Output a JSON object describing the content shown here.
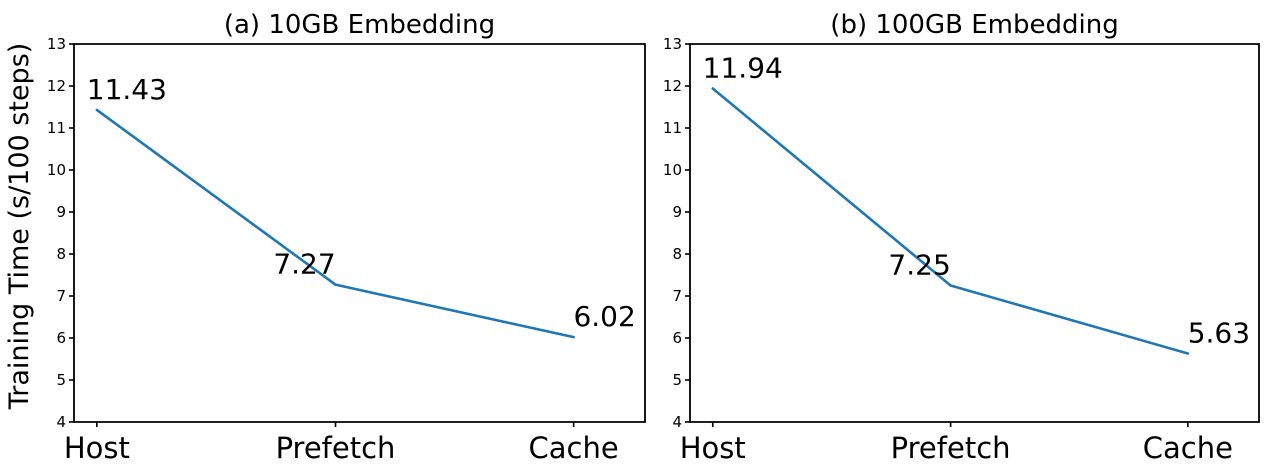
{
  "figure": {
    "background": "#ffffff",
    "text_color": "#000000",
    "line_color": "#1f77b4",
    "shared_ylabel": "Training Time (s/100 steps)"
  },
  "chart_data": [
    {
      "type": "line",
      "title": "(a) 10GB Embedding",
      "categories": [
        "Host",
        "Prefetch",
        "Cache"
      ],
      "values": [
        11.43,
        7.27,
        6.02
      ],
      "point_labels": [
        "11.43",
        "7.27",
        "6.02"
      ],
      "ylabel": "Training Time (s/100 steps)",
      "xlabel": "",
      "ylim": [
        4,
        13
      ],
      "yticks": [
        4,
        5,
        6,
        7,
        8,
        9,
        10,
        11,
        12,
        13
      ],
      "grid": false,
      "legend": "none",
      "line_color": "#1f77b4"
    },
    {
      "type": "line",
      "title": "(b) 100GB Embedding",
      "categories": [
        "Host",
        "Prefetch",
        "Cache"
      ],
      "values": [
        11.94,
        7.25,
        5.63
      ],
      "point_labels": [
        "11.94",
        "7.25",
        "5.63"
      ],
      "ylabel": "",
      "xlabel": "",
      "ylim": [
        4,
        13
      ],
      "yticks": [
        4,
        5,
        6,
        7,
        8,
        9,
        10,
        11,
        12,
        13
      ],
      "grid": false,
      "legend": "none",
      "line_color": "#1f77b4"
    }
  ]
}
